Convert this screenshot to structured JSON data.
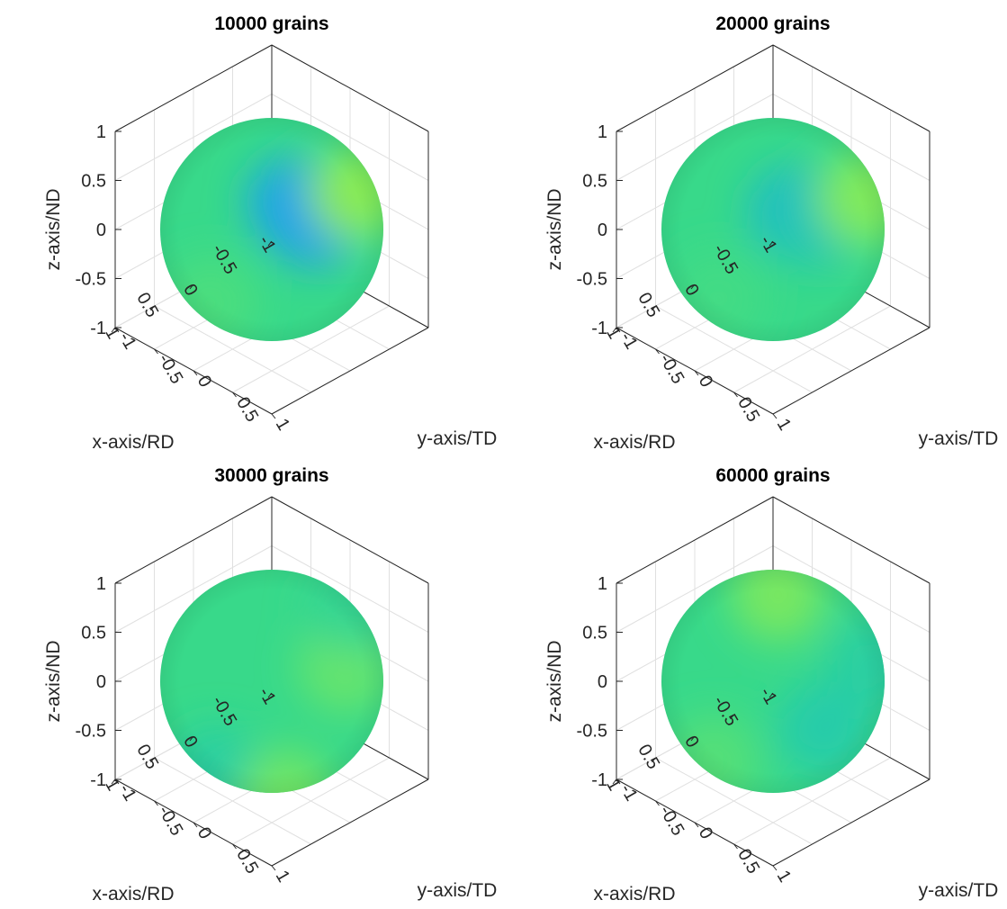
{
  "chart_data": [
    {
      "type": "surface",
      "title": "10000 grains",
      "xlabel": "x-axis/RD",
      "ylabel": "y-axis/TD",
      "zlabel": "z-axis/ND",
      "xlim": [
        -1,
        1
      ],
      "ylim": [
        -1,
        1
      ],
      "zlim": [
        -1,
        1
      ],
      "xticks": [
        "-1",
        "-0.5",
        "0",
        "0.5",
        "1"
      ],
      "yticks": [
        "-1",
        "-0.5",
        "0",
        "0.5",
        "1"
      ],
      "zticks": [
        "-1",
        "-0.5",
        "0",
        "0.5",
        "1"
      ],
      "grid": true,
      "surface": "unit sphere",
      "colormap": [
        "#1f9ff0",
        "#21c7b6",
        "#38d98a",
        "#6be56a",
        "#9cf046"
      ],
      "color_spots": [
        {
          "azimuth_deg": 60,
          "elevation_deg": 45,
          "value": 0.05
        },
        {
          "azimuth_deg": 200,
          "elevation_deg": -25,
          "value": 0.0
        },
        {
          "azimuth_deg": 110,
          "elevation_deg": 35,
          "value": 0.95
        },
        {
          "azimuth_deg": 10,
          "elevation_deg": -15,
          "value": 0.6
        }
      ]
    },
    {
      "type": "surface",
      "title": "20000 grains",
      "xlabel": "x-axis/RD",
      "ylabel": "y-axis/TD",
      "zlabel": "z-axis/ND",
      "xlim": [
        -1,
        1
      ],
      "ylim": [
        -1,
        1
      ],
      "zlim": [
        -1,
        1
      ],
      "xticks": [
        "-1",
        "-0.5",
        "0",
        "0.5",
        "1"
      ],
      "yticks": [
        "-1",
        "-0.5",
        "0",
        "0.5",
        "1"
      ],
      "zticks": [
        "-1",
        "-0.5",
        "0",
        "0.5",
        "1"
      ],
      "grid": true,
      "surface": "unit sphere",
      "colormap": [
        "#1f9ff0",
        "#21c7b6",
        "#38d98a",
        "#6be56a",
        "#9cf046"
      ],
      "color_spots": [
        {
          "azimuth_deg": 60,
          "elevation_deg": 40,
          "value": 0.15
        },
        {
          "azimuth_deg": 200,
          "elevation_deg": -25,
          "value": 0.25
        },
        {
          "azimuth_deg": 115,
          "elevation_deg": 30,
          "value": 0.9
        },
        {
          "azimuth_deg": 15,
          "elevation_deg": -10,
          "value": 0.55
        }
      ]
    },
    {
      "type": "surface",
      "title": "30000 grains",
      "xlabel": "x-axis/RD",
      "ylabel": "y-axis/TD",
      "zlabel": "z-axis/ND",
      "xlim": [
        -1,
        1
      ],
      "ylim": [
        -1,
        1
      ],
      "zlim": [
        -1,
        1
      ],
      "xticks": [
        "-1",
        "-0.5",
        "0",
        "0.5",
        "1"
      ],
      "yticks": [
        "-1",
        "-0.5",
        "0",
        "0.5",
        "1"
      ],
      "zticks": [
        "-1",
        "-0.5",
        "0",
        "0.5",
        "1"
      ],
      "grid": true,
      "surface": "unit sphere",
      "colormap": [
        "#1f9ff0",
        "#21c7b6",
        "#38d98a",
        "#6be56a",
        "#9cf046"
      ],
      "color_spots": [
        {
          "azimuth_deg": 95,
          "elevation_deg": 30,
          "value": 0.75
        },
        {
          "azimuth_deg": 10,
          "elevation_deg": -30,
          "value": 0.35
        },
        {
          "azimuth_deg": 150,
          "elevation_deg": 40,
          "value": 0.45
        },
        {
          "azimuth_deg": 60,
          "elevation_deg": -60,
          "value": 0.8
        }
      ]
    },
    {
      "type": "surface",
      "title": "60000 grains",
      "xlabel": "x-axis/RD",
      "ylabel": "y-axis/TD",
      "zlabel": "z-axis/ND",
      "xlim": [
        -1,
        1
      ],
      "ylim": [
        -1,
        1
      ],
      "zlim": [
        -1,
        1
      ],
      "xticks": [
        "-1",
        "-0.5",
        "0",
        "0.5",
        "1"
      ],
      "yticks": [
        "-1",
        "-0.5",
        "0",
        "0.5",
        "1"
      ],
      "zticks": [
        "-1",
        "-0.5",
        "0",
        "0.5",
        "1"
      ],
      "grid": true,
      "surface": "unit sphere",
      "colormap": [
        "#1f9ff0",
        "#21c7b6",
        "#38d98a",
        "#6be56a",
        "#9cf046"
      ],
      "color_spots": [
        {
          "azimuth_deg": 60,
          "elevation_deg": 80,
          "value": 0.85
        },
        {
          "azimuth_deg": 120,
          "elevation_deg": 20,
          "value": 0.35
        },
        {
          "azimuth_deg": 10,
          "elevation_deg": -20,
          "value": 0.65
        },
        {
          "azimuth_deg": 180,
          "elevation_deg": -50,
          "value": 0.3
        }
      ]
    }
  ]
}
